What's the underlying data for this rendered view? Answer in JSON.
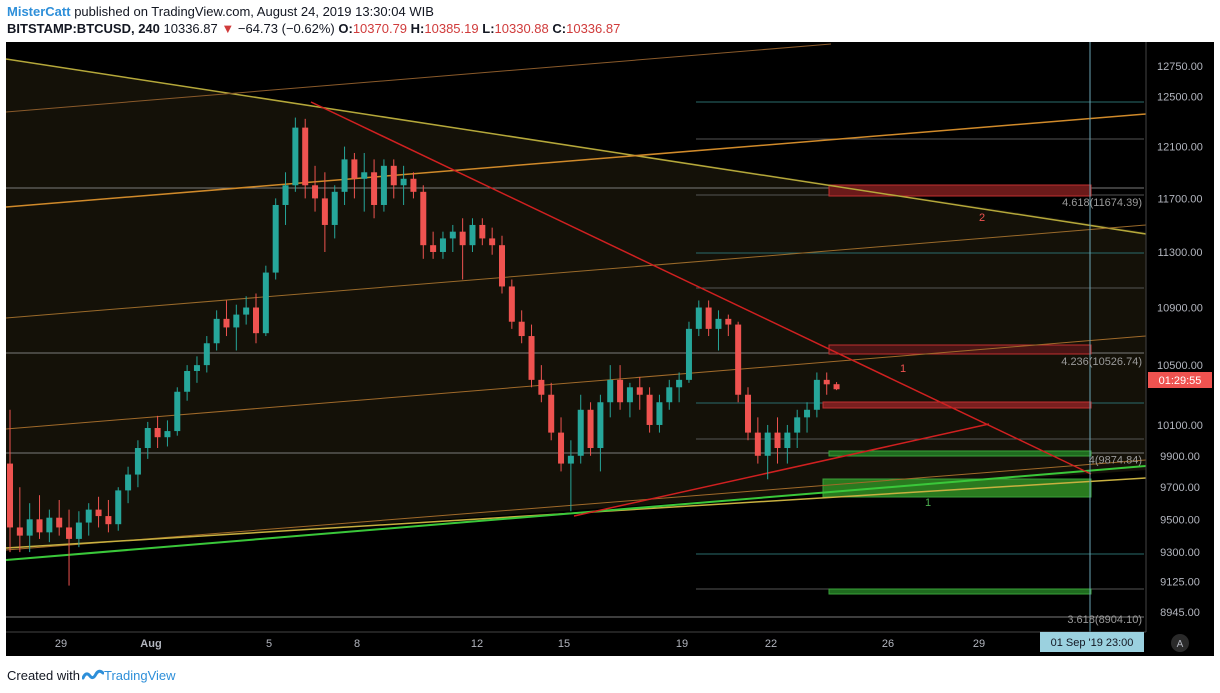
{
  "header": {
    "author": "MisterCatt",
    "published_text": "published on TradingView.com, August 24, 2019 13:30:04 WIB",
    "symbol": "BITSTAMP:BTCUSD, 240",
    "last": "10336.87",
    "change_arrow": "▼",
    "change": "−64.73 (−0.62%)",
    "o_label": "O:",
    "o": "10370.79",
    "h_label": "H:",
    "h": "10385.19",
    "l_label": "L:",
    "l": "10330.88",
    "c_label": "C:",
    "c": "10336.87"
  },
  "footer": {
    "created_with": "Created with",
    "brand": "TradingView"
  },
  "chart_data": {
    "type": "candlestick",
    "symbol": "BITSTAMP:BTCUSD",
    "interval": "240",
    "y_scale": "log",
    "ylim": [
      8830,
      12950
    ],
    "price_ticks": [
      "12750.00",
      "12500.00",
      "12100.00",
      "11700.00",
      "11300.00",
      "10900.00",
      "10500.00",
      "10100.00",
      "9900.00",
      "9700.00",
      "9500.00",
      "9300.00",
      "9125.00",
      "8945.00"
    ],
    "date_ticks": [
      "29",
      "Aug",
      "5",
      "8",
      "12",
      "15",
      "19",
      "22",
      "26",
      "29"
    ],
    "crosshair_date_label": "01 Sep '19   23:00",
    "countdown_label": "01:29:55",
    "current_price": 10336.87,
    "colors": {
      "up": "#26a69a",
      "down": "#ef5350",
      "background": "#000000",
      "axis_text": "#b2b5be",
      "crosshair_label_bg": "#9bd1df"
    },
    "fib_labels": [
      {
        "text": "4.618(11674.39)",
        "price": 11674.39
      },
      {
        "text": "4.236(10526.74)",
        "price": 10526.74
      },
      {
        "text": "4(9874.84)",
        "price": 9874.84
      },
      {
        "text": "3.618(8904.10)",
        "price": 8904.1
      }
    ],
    "zone_labels": [
      {
        "text": "2",
        "color": "#ef5350"
      },
      {
        "text": "1",
        "color": "#ef5350"
      },
      {
        "text": "1",
        "color": "#4caf50"
      }
    ],
    "candles": [
      {
        "d": "Jul 27",
        "o": 9850,
        "h": 10200,
        "l": 9300,
        "c": 9450
      },
      {
        "d": "Jul 27",
        "o": 9450,
        "h": 9700,
        "l": 9300,
        "c": 9400
      },
      {
        "d": "Jul 28",
        "o": 9400,
        "h": 9600,
        "l": 9300,
        "c": 9500
      },
      {
        "d": "Jul 28",
        "o": 9500,
        "h": 9650,
        "l": 9380,
        "c": 9420
      },
      {
        "d": "Jul 28",
        "o": 9420,
        "h": 9560,
        "l": 9360,
        "c": 9510
      },
      {
        "d": "Jul 29",
        "o": 9510,
        "h": 9620,
        "l": 9400,
        "c": 9450
      },
      {
        "d": "Jul 29",
        "o": 9450,
        "h": 9560,
        "l": 9100,
        "c": 9380
      },
      {
        "d": "Jul 29",
        "o": 9380,
        "h": 9550,
        "l": 9330,
        "c": 9480
      },
      {
        "d": "Jul 30",
        "o": 9480,
        "h": 9600,
        "l": 9400,
        "c": 9560
      },
      {
        "d": "Jul 30",
        "o": 9560,
        "h": 9640,
        "l": 9450,
        "c": 9520
      },
      {
        "d": "Jul 30",
        "o": 9520,
        "h": 9620,
        "l": 9420,
        "c": 9470
      },
      {
        "d": "Jul 31",
        "o": 9470,
        "h": 9700,
        "l": 9430,
        "c": 9680
      },
      {
        "d": "Jul 31",
        "o": 9680,
        "h": 9830,
        "l": 9600,
        "c": 9780
      },
      {
        "d": "Jul 31",
        "o": 9780,
        "h": 10000,
        "l": 9700,
        "c": 9950
      },
      {
        "d": "Aug 1",
        "o": 9950,
        "h": 10120,
        "l": 9880,
        "c": 10080
      },
      {
        "d": "Aug 1",
        "o": 10080,
        "h": 10160,
        "l": 9950,
        "c": 10020
      },
      {
        "d": "Aug 1",
        "o": 10020,
        "h": 10130,
        "l": 9960,
        "c": 10060
      },
      {
        "d": "Aug 2",
        "o": 10060,
        "h": 10350,
        "l": 10030,
        "c": 10320
      },
      {
        "d": "Aug 2",
        "o": 10320,
        "h": 10500,
        "l": 10260,
        "c": 10460
      },
      {
        "d": "Aug 2",
        "o": 10460,
        "h": 10560,
        "l": 10380,
        "c": 10500
      },
      {
        "d": "Aug 3",
        "o": 10500,
        "h": 10700,
        "l": 10450,
        "c": 10650
      },
      {
        "d": "Aug 3",
        "o": 10650,
        "h": 10880,
        "l": 10600,
        "c": 10820
      },
      {
        "d": "Aug 3",
        "o": 10820,
        "h": 10950,
        "l": 10700,
        "c": 10760
      },
      {
        "d": "Aug 4",
        "o": 10760,
        "h": 10920,
        "l": 10600,
        "c": 10850
      },
      {
        "d": "Aug 4",
        "o": 10850,
        "h": 10980,
        "l": 10780,
        "c": 10900
      },
      {
        "d": "Aug 4",
        "o": 10900,
        "h": 11000,
        "l": 10650,
        "c": 10720
      },
      {
        "d": "Aug 5",
        "o": 10720,
        "h": 11200,
        "l": 10700,
        "c": 11150
      },
      {
        "d": "Aug 5",
        "o": 11150,
        "h": 11700,
        "l": 11100,
        "c": 11650
      },
      {
        "d": "Aug 5",
        "o": 11650,
        "h": 11900,
        "l": 11500,
        "c": 11800
      },
      {
        "d": "Aug 6",
        "o": 11800,
        "h": 12330,
        "l": 11750,
        "c": 12250
      },
      {
        "d": "Aug 6",
        "o": 12250,
        "h": 12320,
        "l": 11700,
        "c": 11800
      },
      {
        "d": "Aug 6",
        "o": 11800,
        "h": 11950,
        "l": 11600,
        "c": 11700
      },
      {
        "d": "Aug 7",
        "o": 11700,
        "h": 11900,
        "l": 11300,
        "c": 11500
      },
      {
        "d": "Aug 7",
        "o": 11500,
        "h": 11800,
        "l": 11400,
        "c": 11750
      },
      {
        "d": "Aug 7",
        "o": 11750,
        "h": 12100,
        "l": 11650,
        "c": 12000
      },
      {
        "d": "Aug 8",
        "o": 12000,
        "h": 12050,
        "l": 11700,
        "c": 11850
      },
      {
        "d": "Aug 8",
        "o": 11850,
        "h": 12050,
        "l": 11600,
        "c": 11900
      },
      {
        "d": "Aug 8",
        "o": 11900,
        "h": 12000,
        "l": 11550,
        "c": 11650
      },
      {
        "d": "Aug 9",
        "o": 11650,
        "h": 12000,
        "l": 11600,
        "c": 11950
      },
      {
        "d": "Aug 9",
        "o": 11950,
        "h": 12000,
        "l": 11700,
        "c": 11800
      },
      {
        "d": "Aug 9",
        "o": 11800,
        "h": 11950,
        "l": 11650,
        "c": 11850
      },
      {
        "d": "Aug 10",
        "o": 11850,
        "h": 11900,
        "l": 11700,
        "c": 11750
      },
      {
        "d": "Aug 10",
        "o": 11750,
        "h": 11800,
        "l": 11250,
        "c": 11350
      },
      {
        "d": "Aug 10",
        "o": 11350,
        "h": 11450,
        "l": 11250,
        "c": 11300
      },
      {
        "d": "Aug 11",
        "o": 11300,
        "h": 11450,
        "l": 11250,
        "c": 11400
      },
      {
        "d": "Aug 11",
        "o": 11400,
        "h": 11500,
        "l": 11300,
        "c": 11450
      },
      {
        "d": "Aug 11",
        "o": 11450,
        "h": 11550,
        "l": 11100,
        "c": 11350
      },
      {
        "d": "Aug 12",
        "o": 11350,
        "h": 11550,
        "l": 11300,
        "c": 11500
      },
      {
        "d": "Aug 12",
        "o": 11500,
        "h": 11550,
        "l": 11350,
        "c": 11400
      },
      {
        "d": "Aug 12",
        "o": 11400,
        "h": 11480,
        "l": 11280,
        "c": 11350
      },
      {
        "d": "Aug 13",
        "o": 11350,
        "h": 11420,
        "l": 11000,
        "c": 11050
      },
      {
        "d": "Aug 13",
        "o": 11050,
        "h": 11100,
        "l": 10750,
        "c": 10800
      },
      {
        "d": "Aug 13",
        "o": 10800,
        "h": 10880,
        "l": 10650,
        "c": 10700
      },
      {
        "d": "Aug 14",
        "o": 10700,
        "h": 10780,
        "l": 10350,
        "c": 10400
      },
      {
        "d": "Aug 14",
        "o": 10400,
        "h": 10500,
        "l": 10250,
        "c": 10300
      },
      {
        "d": "Aug 14",
        "o": 10300,
        "h": 10380,
        "l": 10000,
        "c": 10050
      },
      {
        "d": "Aug 15",
        "o": 10050,
        "h": 10150,
        "l": 9800,
        "c": 9850
      },
      {
        "d": "Aug 15",
        "o": 9850,
        "h": 10000,
        "l": 9550,
        "c": 9900
      },
      {
        "d": "Aug 15",
        "o": 9900,
        "h": 10300,
        "l": 9850,
        "c": 10200
      },
      {
        "d": "Aug 16",
        "o": 10200,
        "h": 10250,
        "l": 9900,
        "c": 9950
      },
      {
        "d": "Aug 16",
        "o": 9950,
        "h": 10300,
        "l": 9800,
        "c": 10250
      },
      {
        "d": "Aug 16",
        "o": 10250,
        "h": 10500,
        "l": 10150,
        "c": 10400
      },
      {
        "d": "Aug 17",
        "o": 10400,
        "h": 10500,
        "l": 10200,
        "c": 10250
      },
      {
        "d": "Aug 17",
        "o": 10250,
        "h": 10380,
        "l": 10150,
        "c": 10350
      },
      {
        "d": "Aug 17",
        "o": 10350,
        "h": 10420,
        "l": 10200,
        "c": 10300
      },
      {
        "d": "Aug 18",
        "o": 10300,
        "h": 10350,
        "l": 10050,
        "c": 10100
      },
      {
        "d": "Aug 18",
        "o": 10100,
        "h": 10300,
        "l": 10050,
        "c": 10250
      },
      {
        "d": "Aug 18",
        "o": 10250,
        "h": 10400,
        "l": 10200,
        "c": 10350
      },
      {
        "d": "Aug 19",
        "o": 10350,
        "h": 10450,
        "l": 10250,
        "c": 10400
      },
      {
        "d": "Aug 19",
        "o": 10400,
        "h": 10800,
        "l": 10380,
        "c": 10750
      },
      {
        "d": "Aug 19",
        "o": 10750,
        "h": 10950,
        "l": 10700,
        "c": 10900
      },
      {
        "d": "Aug 20",
        "o": 10900,
        "h": 10950,
        "l": 10700,
        "c": 10750
      },
      {
        "d": "Aug 20",
        "o": 10750,
        "h": 10880,
        "l": 10600,
        "c": 10820
      },
      {
        "d": "Aug 20",
        "o": 10820,
        "h": 10850,
        "l": 10700,
        "c": 10780
      },
      {
        "d": "Aug 21",
        "o": 10780,
        "h": 10800,
        "l": 10250,
        "c": 10300
      },
      {
        "d": "Aug 21",
        "o": 10300,
        "h": 10350,
        "l": 10000,
        "c": 10050
      },
      {
        "d": "Aug 21",
        "o": 10050,
        "h": 10150,
        "l": 9850,
        "c": 9900
      },
      {
        "d": "Aug 22",
        "o": 9900,
        "h": 10100,
        "l": 9750,
        "c": 10050
      },
      {
        "d": "Aug 22",
        "o": 10050,
        "h": 10150,
        "l": 9850,
        "c": 9950
      },
      {
        "d": "Aug 22",
        "o": 9950,
        "h": 10100,
        "l": 9850,
        "c": 10050
      },
      {
        "d": "Aug 23",
        "o": 10050,
        "h": 10200,
        "l": 9950,
        "c": 10150
      },
      {
        "d": "Aug 23",
        "o": 10150,
        "h": 10250,
        "l": 10050,
        "c": 10200
      },
      {
        "d": "Aug 23",
        "o": 10200,
        "h": 10450,
        "l": 10150,
        "c": 10400
      },
      {
        "d": "Aug 24",
        "o": 10400,
        "h": 10450,
        "l": 10300,
        "c": 10370
      },
      {
        "d": "Aug 24",
        "o": 10370.79,
        "h": 10385.19,
        "l": 10330.88,
        "c": 10336.87
      }
    ]
  }
}
